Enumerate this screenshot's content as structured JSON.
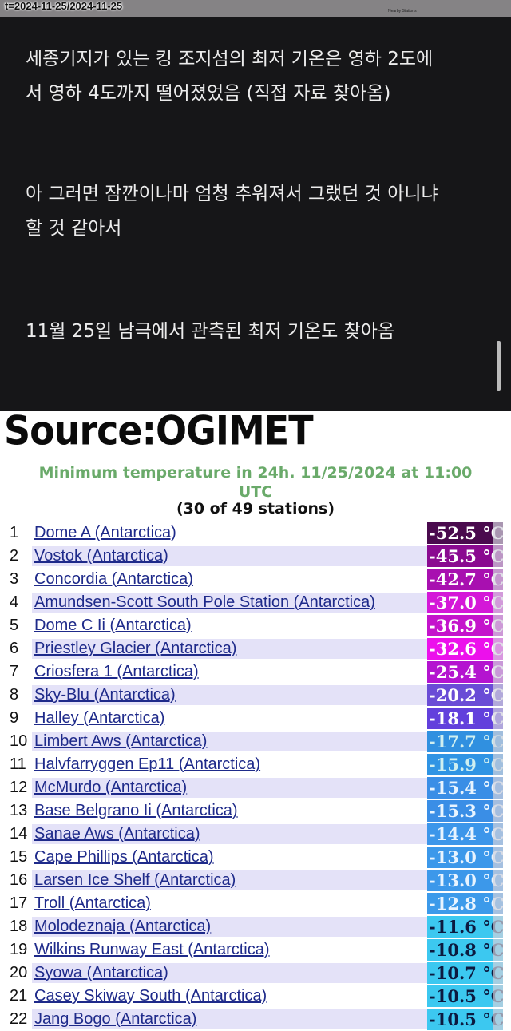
{
  "top_bar": {
    "url_text": "t=2024-11-25/2024-11-25",
    "nearby_label": "Nearby Stations"
  },
  "post": {
    "paragraphs": [
      [
        "세종기지가 있는 킹 조지섬의 최저 기온은 영하 2도에",
        "서 영하 4도까지 떨어졌었음 (직접 자료 찾아옴)"
      ],
      [
        "아 그러면 잠깐이나마 엄청 추워져서 그랬던 것 아니냐",
        "할 것 같아서"
      ],
      [
        "11월 25일 남극에서 관측된 최저 기온도 찾아옴"
      ]
    ]
  },
  "image": {
    "source_label": "Source:OGIMET",
    "caption_line1": "Minimum temperature in 24h. 11/25/2024 at 11:00",
    "caption_line2": "UTC",
    "station_count": "(30 of 49 stations)",
    "unit": "°C",
    "rows": [
      {
        "rank": "1",
        "name": "Dome A (Antarctica)",
        "temp": "-52.5",
        "color": "#4a0a4e",
        "text": "#fff"
      },
      {
        "rank": "2",
        "name": "Vostok (Antarctica)",
        "temp": "-45.5",
        "color": "#8a0a90",
        "text": "#fff"
      },
      {
        "rank": "3",
        "name": "Concordia (Antarctica)",
        "temp": "-42.7",
        "color": "#a810b0",
        "text": "#fff"
      },
      {
        "rank": "4",
        "name": "Amundsen-Scott South Pole Station (Antarctica)",
        "temp": "-37.0",
        "color": "#d418d8",
        "text": "#fff"
      },
      {
        "rank": "5",
        "name": "Dome C Ii (Antarctica)",
        "temp": "-36.9",
        "color": "#c414cc",
        "text": "#fff"
      },
      {
        "rank": "6",
        "name": "Priestley Glacier (Antarctica)",
        "temp": "-32.6",
        "color": "#ec10ec",
        "text": "#fff"
      },
      {
        "rank": "7",
        "name": "Criosfera 1 (Antarctica)",
        "temp": "-25.4",
        "color": "#b414d0",
        "text": "#fff"
      },
      {
        "rank": "8",
        "name": "Sky-Blu (Antarctica)",
        "temp": "-20.2",
        "color": "#6a4cd6",
        "text": "#fff"
      },
      {
        "rank": "9",
        "name": "Halley (Antarctica)",
        "temp": "-18.1",
        "color": "#6240dc",
        "text": "#fff"
      },
      {
        "rank": "10",
        "name": "Limbert Aws (Antarctica)",
        "temp": "-17.7",
        "color": "#3090e0",
        "text": "#cfeff0"
      },
      {
        "rank": "11",
        "name": "Halvfarryggen Ep11 (Antarctica)",
        "temp": "-15.9",
        "color": "#3094e4",
        "text": "#cfeff0"
      },
      {
        "rank": "12",
        "name": "McMurdo (Antarctica)",
        "temp": "-15.4",
        "color": "#3a8ee6",
        "text": "#e8f4ff"
      },
      {
        "rank": "13",
        "name": "Base Belgrano Ii (Antarctica)",
        "temp": "-15.3",
        "color": "#3a8ee6",
        "text": "#e8f4ff"
      },
      {
        "rank": "14",
        "name": "Sanae Aws (Antarctica)",
        "temp": "-14.4",
        "color": "#3c96ea",
        "text": "#e8f4ff"
      },
      {
        "rank": "15",
        "name": "Cape Phillips (Antarctica)",
        "temp": "-13.0",
        "color": "#3c98ea",
        "text": "#e8f4ff"
      },
      {
        "rank": "16",
        "name": "Larsen Ice Shelf (Antarctica)",
        "temp": "-13.0",
        "color": "#3c98ea",
        "text": "#e8f4ff"
      },
      {
        "rank": "17",
        "name": "Troll (Antarctica)",
        "temp": "-12.8",
        "color": "#3c9aea",
        "text": "#e8f4ff"
      },
      {
        "rank": "18",
        "name": "Molodeznaja (Antarctica)",
        "temp": "-11.6",
        "color": "#3cc8f0",
        "text": "#0c1a40"
      },
      {
        "rank": "19",
        "name": "Wilkins Runway East (Antarctica)",
        "temp": "-10.8",
        "color": "#3cc8f0",
        "text": "#0c1a40"
      },
      {
        "rank": "20",
        "name": "Syowa (Antarctica)",
        "temp": "-10.7",
        "color": "#3cc8f0",
        "text": "#0c1a40"
      },
      {
        "rank": "21",
        "name": "Casey Skiway South (Antarctica)",
        "temp": "-10.5",
        "color": "#3cc8f0",
        "text": "#0c1a40"
      },
      {
        "rank": "22",
        "name": "Jang Bogo (Antarctica)",
        "temp": "-10.5",
        "color": "#3cc8f0",
        "text": "#0c1a40"
      }
    ]
  }
}
